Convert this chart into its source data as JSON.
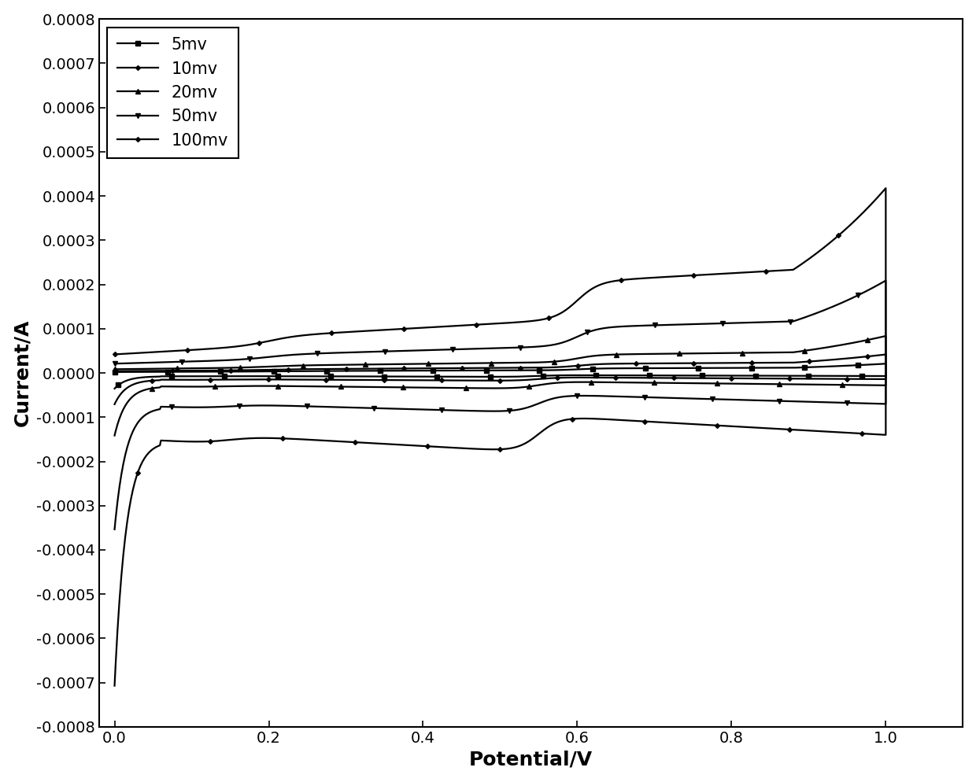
{
  "title": "",
  "xlabel": "Potential/V",
  "ylabel": "Current/A",
  "xlim": [
    -0.02,
    1.1
  ],
  "ylim": [
    -0.0008,
    0.0008
  ],
  "xticks": [
    0.0,
    0.2,
    0.4,
    0.6,
    0.8,
    1.0
  ],
  "yticks": [
    -0.0008,
    -0.0007,
    -0.0006,
    -0.0005,
    -0.0004,
    -0.0003,
    -0.0002,
    -0.0001,
    0.0,
    0.0001,
    0.0002,
    0.0003,
    0.0004,
    0.0005,
    0.0006,
    0.0007,
    0.0008
  ],
  "legend_labels": [
    "5mv",
    "10mv",
    "20mv",
    "50mv",
    "100mv"
  ],
  "line_color": "#000000",
  "background_color": "#ffffff",
  "scan_rates": [
    5,
    10,
    20,
    50,
    100
  ],
  "xlabel_fontsize": 18,
  "ylabel_fontsize": 18,
  "tick_fontsize": 14,
  "legend_fontsize": 15
}
